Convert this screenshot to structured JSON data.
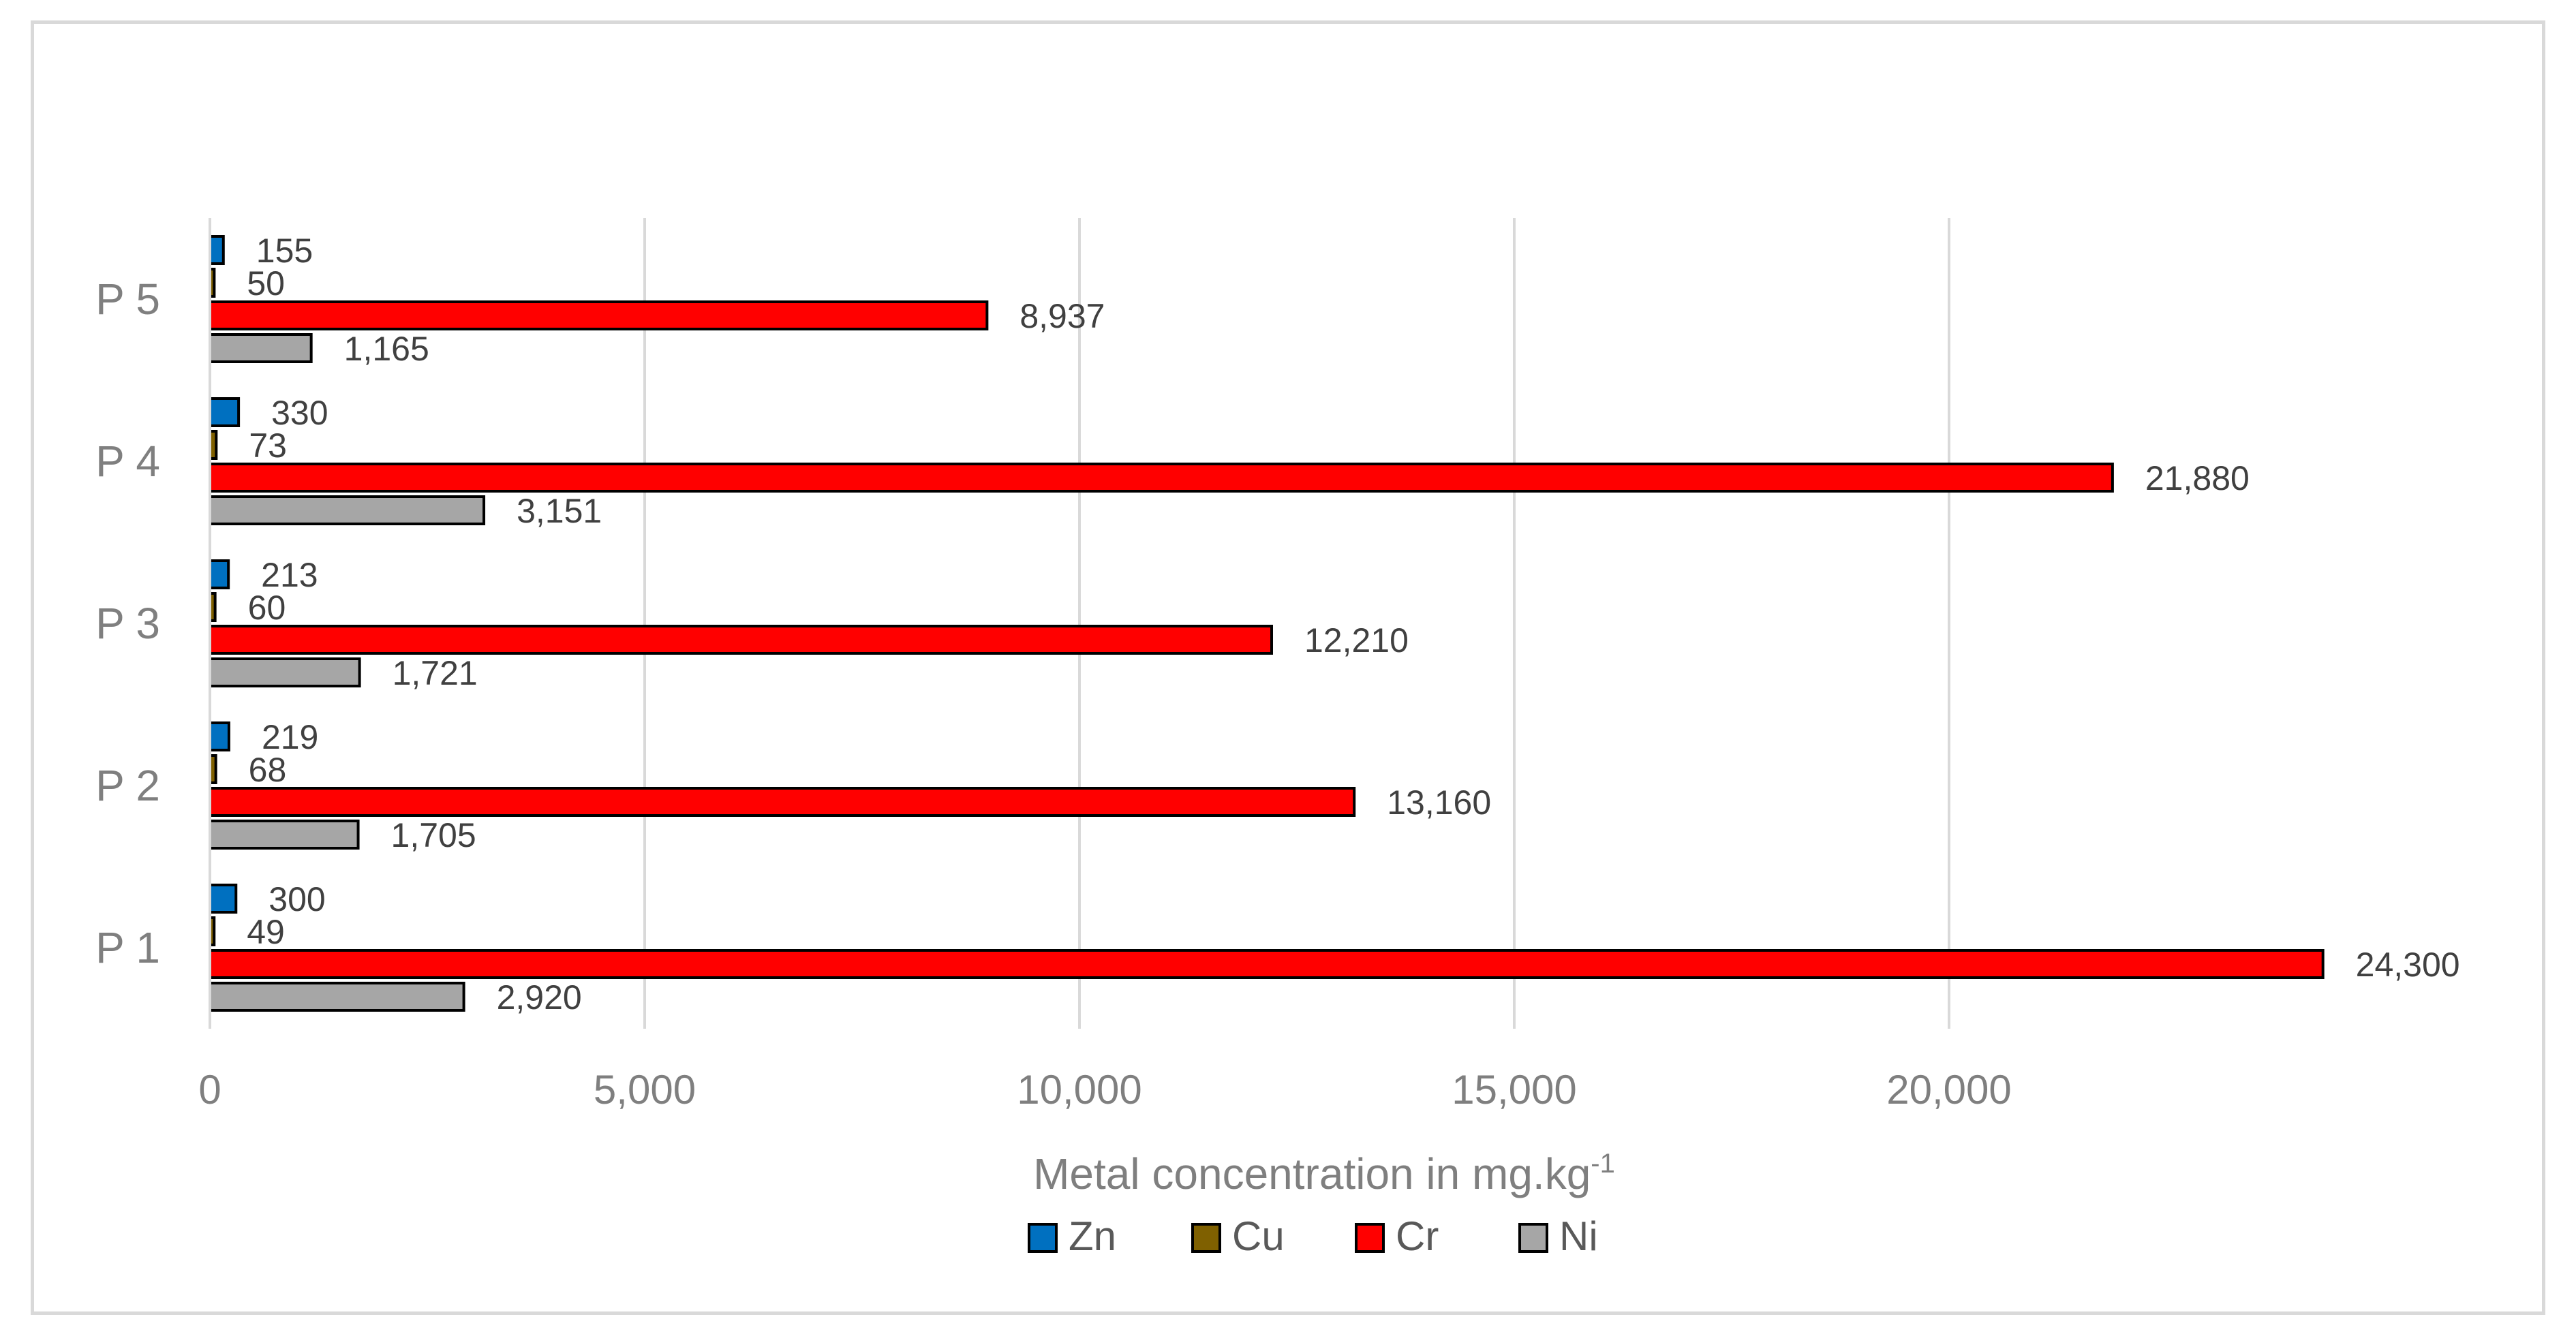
{
  "chart_data": {
    "type": "bar",
    "orientation": "horizontal",
    "categories": [
      "P 1",
      "P 2",
      "P 3",
      "P 4",
      "P 5"
    ],
    "series": [
      {
        "name": "Zn",
        "color": "#0070c0",
        "values": [
          300,
          219,
          213,
          330,
          155
        ],
        "labels": [
          "300",
          "219",
          "213",
          "330",
          "155"
        ]
      },
      {
        "name": "Cu",
        "color": "#7f6000",
        "values": [
          49,
          68,
          60,
          73,
          50
        ],
        "labels": [
          "49",
          "68",
          "60",
          "73",
          "50"
        ]
      },
      {
        "name": "Cr",
        "color": "#ff0000",
        "values": [
          24300,
          13160,
          12210,
          21880,
          8937
        ],
        "labels": [
          "24,300",
          "13,160",
          "12,210",
          "21,880",
          "8,937"
        ]
      },
      {
        "name": "Ni",
        "color": "#a6a6a6",
        "values": [
          2920,
          1705,
          1721,
          3151,
          1165
        ],
        "labels": [
          "2,920",
          "1,705",
          "1,721",
          "3,151",
          "1,165"
        ]
      }
    ],
    "xlabel": "Metal concentration in mg.kg",
    "xlabel_superscript": "-1",
    "xlim": [
      0,
      25000
    ],
    "xticks": [
      0,
      5000,
      10000,
      15000,
      20000
    ],
    "xtick_labels": [
      "0",
      "5,000",
      "10,000",
      "15,000",
      "20,000"
    ],
    "grid": "vertical",
    "legend": "bottom"
  }
}
